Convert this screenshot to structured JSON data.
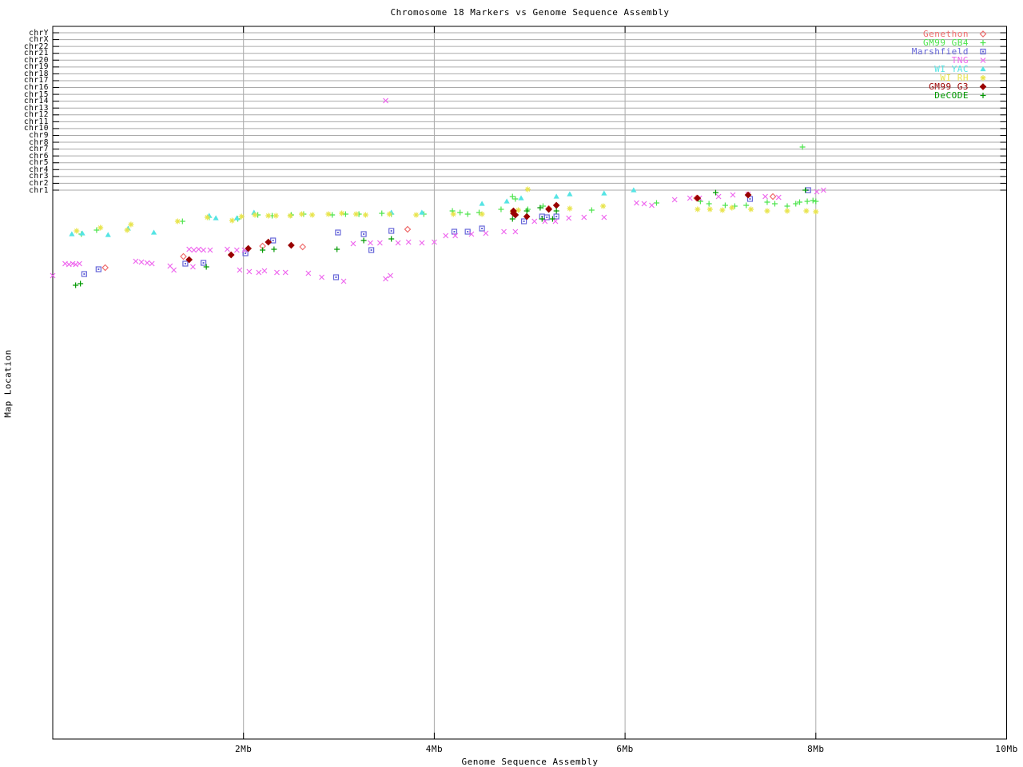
{
  "title": "Chromosome 18 Markers vs Genome Sequence Assembly",
  "x_axis": {
    "label": "Genome Sequence Assembly",
    "tick_labels": [
      "2Mb",
      "4Mb",
      "6Mb",
      "8Mb",
      "10Mb"
    ],
    "tick_values_mb": [
      2,
      4,
      6,
      8,
      10
    ],
    "range_mb": [
      0,
      10
    ]
  },
  "y_axis": {
    "label": "Map Location",
    "chromosome_rows": [
      "chrY",
      "chrX",
      "chr22",
      "chr21",
      "chr20",
      "chr19",
      "chr18",
      "chr17",
      "chr16",
      "chr15",
      "chr14",
      "chr13",
      "chr12",
      "chr11",
      "chr10",
      "chr9",
      "chr8",
      "chr7",
      "chr6",
      "chr5",
      "chr4",
      "chr3",
      "chr2",
      "chr1"
    ]
  },
  "style": {
    "grid_color": "#aaaaaa",
    "axis_color": "#000000",
    "background": "#ffffff"
  },
  "chart_data": {
    "type": "scatter",
    "title": "Chromosome 18 Markers vs Genome Sequence Assembly",
    "xlabel": "Genome Sequence Assembly",
    "ylabel": "Map Location",
    "xlim_mb": [
      0,
      10
    ],
    "grid": true,
    "legend_position": "top-right",
    "y_note": "Y axis top band holds 24 labeled chromosome gridline rows (chrY..chr1); map-location space below is unlabeled. Point y values are pixel rows of the 960px-tall source image (plot area y 33-925; chr rows y 41-238).",
    "series": [
      {
        "name": "Genethon",
        "marker": "open-diamond",
        "color": "#ee6a6a",
        "points": [
          [
            0.55,
            335
          ],
          [
            1.37,
            321
          ],
          [
            2.2,
            308
          ],
          [
            2.62,
            309
          ],
          [
            3.72,
            287
          ],
          [
            5.2,
            261
          ],
          [
            6.75,
            248
          ],
          [
            7.55,
            246
          ]
        ]
      },
      {
        "name": "GM99 GB4",
        "marker": "plus",
        "color": "#4ce44c",
        "points": [
          [
            0.3,
            293
          ],
          [
            0.46,
            288
          ],
          [
            1.36,
            277
          ],
          [
            1.64,
            272
          ],
          [
            1.94,
            274
          ],
          [
            2.15,
            269
          ],
          [
            2.3,
            270
          ],
          [
            2.5,
            269
          ],
          [
            2.63,
            268
          ],
          [
            2.93,
            269
          ],
          [
            3.07,
            268
          ],
          [
            3.21,
            268
          ],
          [
            3.45,
            267
          ],
          [
            3.55,
            268
          ],
          [
            3.89,
            268
          ],
          [
            4.19,
            264
          ],
          [
            4.27,
            266
          ],
          [
            4.35,
            268
          ],
          [
            4.47,
            266
          ],
          [
            4.7,
            262
          ],
          [
            4.82,
            246
          ],
          [
            4.85,
            249
          ],
          [
            4.98,
            262
          ],
          [
            5.14,
            258
          ],
          [
            5.65,
            263
          ],
          [
            6.33,
            254
          ],
          [
            6.79,
            252
          ],
          [
            6.88,
            255
          ],
          [
            7.05,
            257
          ],
          [
            7.15,
            258
          ],
          [
            7.27,
            257
          ],
          [
            7.49,
            253
          ],
          [
            7.57,
            255
          ],
          [
            7.7,
            258
          ],
          [
            7.79,
            255
          ],
          [
            7.83,
            253
          ],
          [
            7.86,
            184
          ],
          [
            7.91,
            252
          ],
          [
            7.97,
            251
          ],
          [
            8.0,
            252
          ]
        ]
      },
      {
        "name": "Marshfield",
        "marker": "dot-square",
        "color": "#6666d9",
        "points": [
          [
            0.33,
            343
          ],
          [
            0.48,
            337
          ],
          [
            1.39,
            330
          ],
          [
            1.58,
            329
          ],
          [
            2.02,
            317
          ],
          [
            2.31,
            301
          ],
          [
            2.97,
            347
          ],
          [
            2.99,
            291
          ],
          [
            3.26,
            293
          ],
          [
            3.34,
            313
          ],
          [
            3.55,
            289
          ],
          [
            4.21,
            290
          ],
          [
            4.35,
            290
          ],
          [
            4.5,
            286
          ],
          [
            4.94,
            277
          ],
          [
            5.13,
            271
          ],
          [
            5.18,
            272
          ],
          [
            5.28,
            271
          ],
          [
            7.31,
            249
          ],
          [
            7.92,
            238
          ]
        ]
      },
      {
        "name": "TNG",
        "marker": "cross",
        "color": "#ee66ee",
        "points": [
          [
            0.0,
            345
          ],
          [
            0.13,
            330
          ],
          [
            0.17,
            331
          ],
          [
            0.21,
            330
          ],
          [
            0.24,
            331
          ],
          [
            0.28,
            330
          ],
          [
            0.87,
            327
          ],
          [
            0.93,
            328
          ],
          [
            0.99,
            329
          ],
          [
            1.04,
            330
          ],
          [
            1.23,
            333
          ],
          [
            1.27,
            338
          ],
          [
            1.43,
            312
          ],
          [
            1.47,
            334
          ],
          [
            1.48,
            313
          ],
          [
            1.53,
            312
          ],
          [
            1.58,
            313
          ],
          [
            1.65,
            313
          ],
          [
            1.83,
            312
          ],
          [
            1.93,
            313
          ],
          [
            2.01,
            313
          ],
          [
            1.96,
            338
          ],
          [
            2.06,
            340
          ],
          [
            2.16,
            341
          ],
          [
            2.22,
            339
          ],
          [
            2.35,
            341
          ],
          [
            2.44,
            341
          ],
          [
            2.68,
            342
          ],
          [
            2.82,
            347
          ],
          [
            3.05,
            352
          ],
          [
            3.49,
            349
          ],
          [
            3.54,
            345
          ],
          [
            3.15,
            305
          ],
          [
            3.33,
            304
          ],
          [
            3.43,
            304
          ],
          [
            3.62,
            304
          ],
          [
            3.73,
            303
          ],
          [
            3.87,
            304
          ],
          [
            4.0,
            303
          ],
          [
            3.49,
            126
          ],
          [
            4.12,
            295
          ],
          [
            4.22,
            295
          ],
          [
            4.39,
            293
          ],
          [
            4.54,
            292
          ],
          [
            4.73,
            290
          ],
          [
            4.85,
            290
          ],
          [
            5.05,
            277
          ],
          [
            5.16,
            277
          ],
          [
            5.27,
            277
          ],
          [
            5.41,
            273
          ],
          [
            5.57,
            272
          ],
          [
            5.78,
            272
          ],
          [
            6.12,
            254
          ],
          [
            6.2,
            255
          ],
          [
            6.28,
            257
          ],
          [
            6.52,
            250
          ],
          [
            6.68,
            248
          ],
          [
            6.78,
            248
          ],
          [
            6.98,
            246
          ],
          [
            7.13,
            244
          ],
          [
            7.29,
            243
          ],
          [
            7.47,
            246
          ],
          [
            7.61,
            247
          ],
          [
            8.01,
            240
          ],
          [
            8.08,
            238
          ]
        ]
      },
      {
        "name": "WI YAC",
        "marker": "filled-triangle",
        "color": "#55e4e4",
        "points": [
          [
            0.2,
            293
          ],
          [
            0.31,
            292
          ],
          [
            0.58,
            294
          ],
          [
            0.79,
            286
          ],
          [
            1.06,
            291
          ],
          [
            1.64,
            270
          ],
          [
            1.71,
            273
          ],
          [
            1.93,
            273
          ],
          [
            2.11,
            266
          ],
          [
            3.55,
            266
          ],
          [
            3.87,
            266
          ],
          [
            4.5,
            255
          ],
          [
            4.76,
            252
          ],
          [
            4.91,
            248
          ],
          [
            5.28,
            246
          ],
          [
            5.42,
            243
          ],
          [
            5.78,
            242
          ],
          [
            6.09,
            238
          ]
        ]
      },
      {
        "name": "WI RH",
        "marker": "star",
        "color": "#e8e44c",
        "points": [
          [
            0.25,
            289
          ],
          [
            0.5,
            285
          ],
          [
            0.78,
            288
          ],
          [
            0.82,
            281
          ],
          [
            1.31,
            277
          ],
          [
            1.62,
            272
          ],
          [
            1.88,
            276
          ],
          [
            1.98,
            271
          ],
          [
            2.12,
            269
          ],
          [
            2.26,
            270
          ],
          [
            2.34,
            270
          ],
          [
            2.49,
            270
          ],
          [
            2.61,
            268
          ],
          [
            2.72,
            269
          ],
          [
            2.89,
            268
          ],
          [
            3.03,
            267
          ],
          [
            3.18,
            268
          ],
          [
            3.28,
            269
          ],
          [
            3.53,
            268
          ],
          [
            3.81,
            269
          ],
          [
            4.2,
            268
          ],
          [
            4.5,
            268
          ],
          [
            4.82,
            265
          ],
          [
            4.88,
            263
          ],
          [
            4.98,
            237
          ],
          [
            5.42,
            261
          ],
          [
            5.77,
            258
          ],
          [
            6.76,
            262
          ],
          [
            6.89,
            262
          ],
          [
            7.02,
            263
          ],
          [
            7.12,
            260
          ],
          [
            7.32,
            262
          ],
          [
            7.49,
            264
          ],
          [
            7.7,
            264
          ],
          [
            7.9,
            264
          ],
          [
            8.0,
            265
          ]
        ]
      },
      {
        "name": "GM99 G3",
        "marker": "filled-diamond",
        "color": "#990000",
        "points": [
          [
            1.43,
            325
          ],
          [
            1.87,
            319
          ],
          [
            2.05,
            311
          ],
          [
            2.26,
            303
          ],
          [
            2.5,
            307
          ],
          [
            4.83,
            264
          ],
          [
            4.83,
            267
          ],
          [
            4.85,
            269
          ],
          [
            4.97,
            271
          ],
          [
            5.2,
            262
          ],
          [
            5.28,
            257
          ],
          [
            6.76,
            248
          ],
          [
            7.29,
            244
          ]
        ]
      },
      {
        "name": "DeCODE",
        "marker": "plus",
        "color": "#009900",
        "points": [
          [
            0.24,
            357
          ],
          [
            0.29,
            355
          ],
          [
            1.61,
            334
          ],
          [
            2.2,
            313
          ],
          [
            2.32,
            312
          ],
          [
            2.98,
            312
          ],
          [
            3.26,
            301
          ],
          [
            3.55,
            299
          ],
          [
            4.82,
            274
          ],
          [
            4.97,
            264
          ],
          [
            5.11,
            260
          ],
          [
            5.13,
            274
          ],
          [
            5.24,
            274
          ],
          [
            5.28,
            264
          ],
          [
            6.95,
            241
          ],
          [
            7.89,
            238
          ]
        ]
      }
    ]
  }
}
